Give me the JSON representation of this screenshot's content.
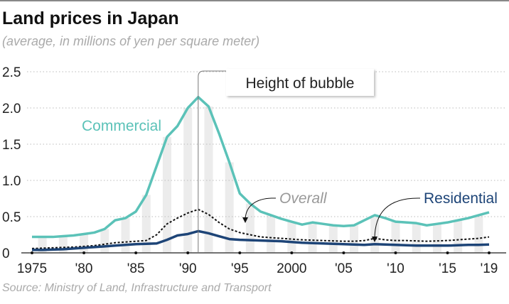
{
  "title": "Land prices in Japan",
  "subtitle": "(average, in millions of yen per square meter)",
  "source": "Source: Ministry of Land, Infrastructure and Transport",
  "chart_data": {
    "type": "line",
    "title": "Land prices in Japan",
    "ylabel": "average, in millions of yen per square meter",
    "xlim": [
      1975,
      2019
    ],
    "ylim": [
      0,
      2.5
    ],
    "yticks": [
      0,
      0.5,
      1.0,
      1.5,
      2.0,
      2.5
    ],
    "ytick_labels": [
      "0",
      "0.5",
      "1.0",
      "1.5",
      "2.0",
      "2.5"
    ],
    "xticks": [
      1975,
      1980,
      1985,
      1990,
      1995,
      2000,
      2005,
      2010,
      2015,
      2019
    ],
    "xtick_labels": [
      "1975",
      "'80",
      "'85",
      "'90",
      "'95",
      "2000",
      "'05",
      "'10",
      "'15",
      "'19"
    ],
    "grid": true,
    "x": [
      1975,
      1976,
      1977,
      1978,
      1979,
      1980,
      1981,
      1982,
      1983,
      1984,
      1985,
      1986,
      1987,
      1988,
      1989,
      1990,
      1991,
      1992,
      1993,
      1994,
      1995,
      1996,
      1997,
      1998,
      1999,
      2000,
      2001,
      2002,
      2003,
      2004,
      2005,
      2006,
      2007,
      2008,
      2009,
      2010,
      2011,
      2012,
      2013,
      2014,
      2015,
      2016,
      2017,
      2018,
      2019
    ],
    "series": [
      {
        "name": "Commercial",
        "color": "#5bc2b8",
        "style": "solid",
        "values": [
          0.22,
          0.22,
          0.22,
          0.23,
          0.24,
          0.26,
          0.28,
          0.33,
          0.45,
          0.48,
          0.57,
          0.8,
          1.2,
          1.6,
          1.75,
          2.0,
          2.15,
          2.02,
          1.65,
          1.25,
          0.82,
          0.68,
          0.57,
          0.52,
          0.47,
          0.43,
          0.39,
          0.42,
          0.4,
          0.38,
          0.37,
          0.38,
          0.45,
          0.52,
          0.48,
          0.43,
          0.42,
          0.41,
          0.38,
          0.4,
          0.42,
          0.45,
          0.48,
          0.52,
          0.56
        ]
      },
      {
        "name": "Overall",
        "color": "#111111",
        "style": "dotted",
        "values": [
          0.06,
          0.065,
          0.07,
          0.075,
          0.08,
          0.09,
          0.1,
          0.12,
          0.14,
          0.15,
          0.16,
          0.17,
          0.25,
          0.4,
          0.48,
          0.55,
          0.6,
          0.53,
          0.42,
          0.33,
          0.28,
          0.25,
          0.22,
          0.21,
          0.2,
          0.19,
          0.18,
          0.175,
          0.17,
          0.165,
          0.16,
          0.16,
          0.17,
          0.2,
          0.18,
          0.17,
          0.17,
          0.165,
          0.16,
          0.165,
          0.17,
          0.18,
          0.19,
          0.2,
          0.22
        ]
      },
      {
        "name": "Residential",
        "color": "#1d4477",
        "style": "solid",
        "values": [
          0.04,
          0.04,
          0.045,
          0.05,
          0.06,
          0.07,
          0.08,
          0.09,
          0.1,
          0.11,
          0.12,
          0.125,
          0.13,
          0.18,
          0.24,
          0.26,
          0.3,
          0.27,
          0.23,
          0.19,
          0.18,
          0.175,
          0.17,
          0.165,
          0.16,
          0.15,
          0.14,
          0.135,
          0.13,
          0.125,
          0.12,
          0.115,
          0.11,
          0.12,
          0.115,
          0.11,
          0.105,
          0.1,
          0.1,
          0.1,
          0.1,
          0.105,
          0.11,
          0.11,
          0.115
        ]
      }
    ],
    "annotations": [
      {
        "text": "Height of bubble",
        "x": 1991
      },
      {
        "text": "Overall",
        "x": 1995
      },
      {
        "text": "Residential",
        "x": 2007
      },
      {
        "text": "Commercial",
        "x": 1983
      }
    ]
  }
}
